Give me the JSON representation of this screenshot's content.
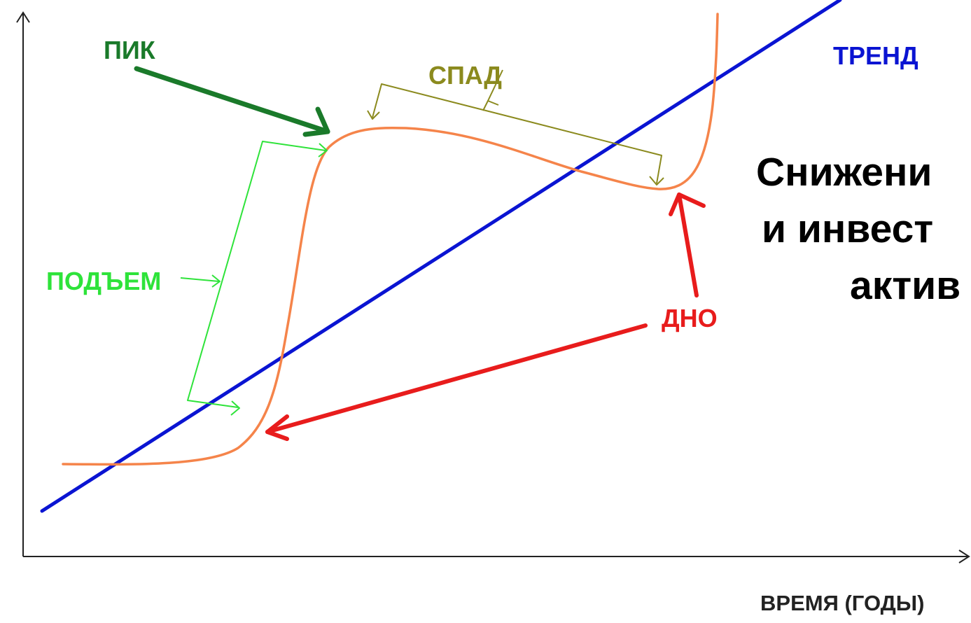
{
  "labels": {
    "peak": "ПИК",
    "decline": "СПАД",
    "trend": "ТРЕНД",
    "rise": "ПОДЪЕМ",
    "bottom": "ДНО",
    "x_axis": "ВРЕМЯ (ГОДЫ)"
  },
  "overlay_text": {
    "line1": "Снижени",
    "line2": "и инвест",
    "line3": "актив"
  },
  "colors": {
    "axis": "#222222",
    "trend": "#0a14d2",
    "cycle_curve": "#f5844a",
    "peak": "#1a7a2a",
    "decline": "#8b8a1e",
    "rise": "#2ee33a",
    "bottom": "#e81c1c",
    "overlay_text": "#000000"
  }
}
